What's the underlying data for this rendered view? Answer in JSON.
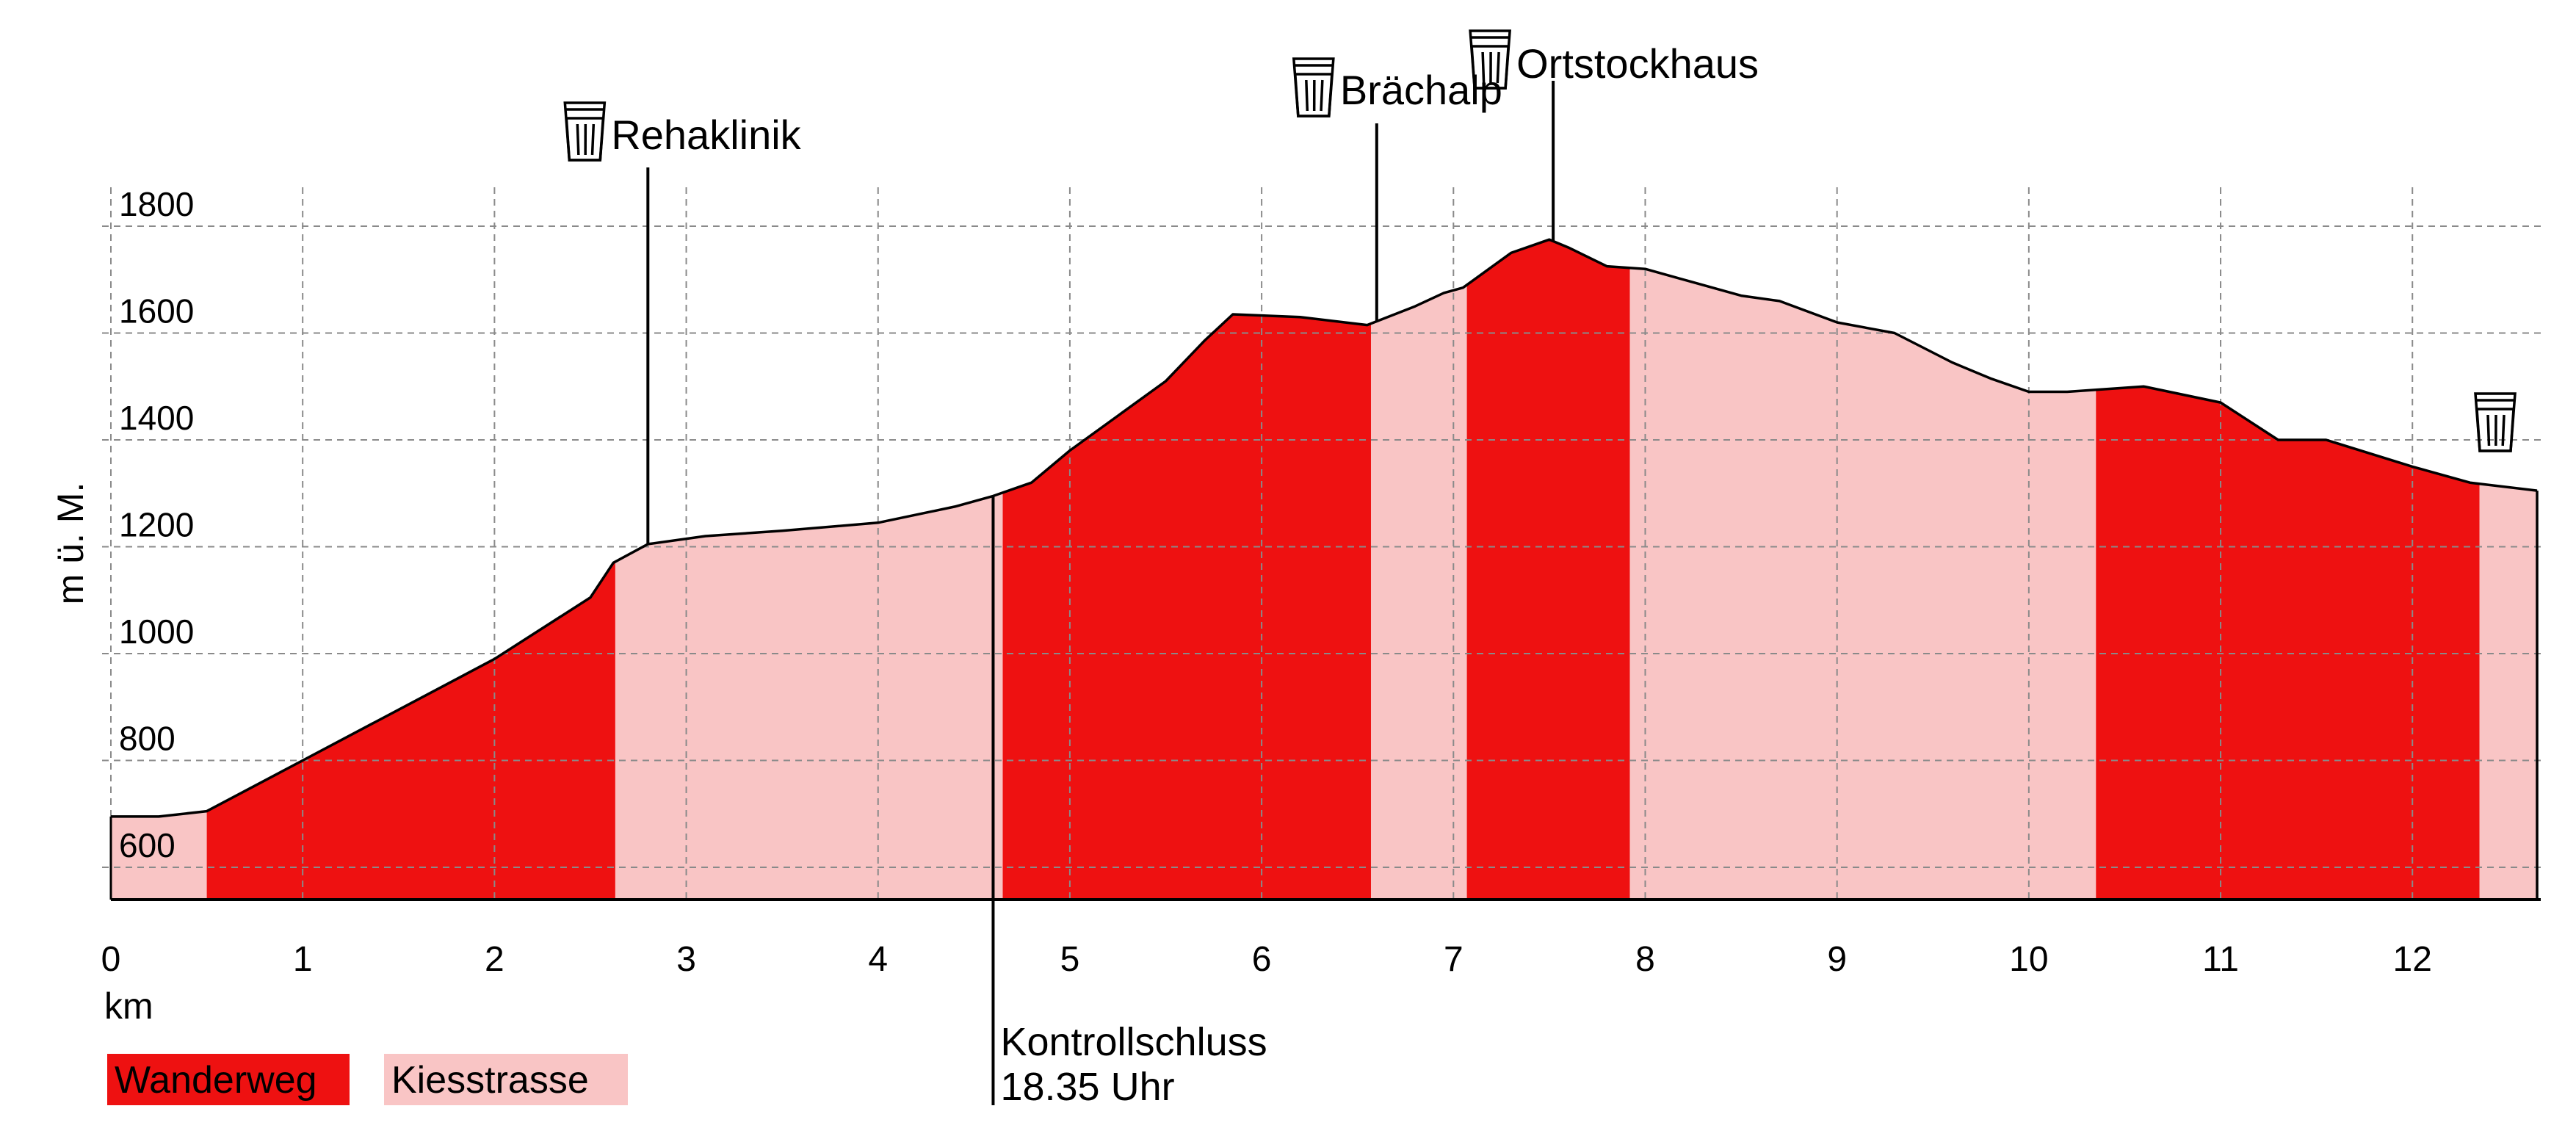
{
  "chart_data": {
    "type": "area",
    "title": "",
    "xlabel": "km",
    "ylabel": "m ü. M.",
    "xlim": [
      0,
      12.65
    ],
    "ylim": [
      550,
      1800
    ],
    "x_ticks": [
      0,
      1,
      2,
      3,
      4,
      5,
      6,
      7,
      8,
      9,
      10,
      11,
      12
    ],
    "y_ticks": [
      600,
      800,
      1000,
      1200,
      1400,
      1600,
      1800
    ],
    "grid": true,
    "profile": {
      "x": [
        0,
        0.25,
        0.5,
        1,
        1.5,
        2,
        2.5,
        2.62,
        2.8,
        3.1,
        3.5,
        4,
        4.4,
        4.6,
        4.8,
        5,
        5.5,
        5.7,
        5.85,
        6.2,
        6.55,
        6.8,
        6.95,
        7.05,
        7.3,
        7.5,
        7.6,
        7.8,
        8.0,
        8.5,
        8.7,
        9,
        9.3,
        9.6,
        9.8,
        10.0,
        10.2,
        10.6,
        11.0,
        11.3,
        11.55,
        12,
        12.3,
        12.65
      ],
      "y": [
        695,
        695,
        705,
        800,
        895,
        990,
        1105,
        1170,
        1205,
        1220,
        1230,
        1245,
        1275,
        1295,
        1320,
        1380,
        1510,
        1585,
        1635,
        1630,
        1615,
        1650,
        1675,
        1685,
        1750,
        1775,
        1760,
        1725,
        1720,
        1670,
        1660,
        1620,
        1600,
        1545,
        1515,
        1490,
        1490,
        1500,
        1470,
        1400,
        1400,
        1350,
        1320,
        1305
      ]
    },
    "segments": [
      {
        "name": "Kiesstrasse",
        "from": 0,
        "to": 0.5
      },
      {
        "name": "Wanderweg",
        "from": 0.5,
        "to": 2.63
      },
      {
        "name": "Kiesstrasse",
        "from": 2.63,
        "to": 4.65
      },
      {
        "name": "Wanderweg",
        "from": 4.65,
        "to": 6.57
      },
      {
        "name": "Kiesstrasse",
        "from": 6.57,
        "to": 7.07
      },
      {
        "name": "Wanderweg",
        "from": 7.07,
        "to": 7.92
      },
      {
        "name": "Kiesstrasse",
        "from": 7.92,
        "to": 10.35
      },
      {
        "name": "Wanderweg",
        "from": 10.35,
        "to": 12.35
      },
      {
        "name": "Kiesstrasse",
        "from": 12.35,
        "to": 12.65
      }
    ],
    "legend": [
      {
        "name": "Wanderweg",
        "color": "#EE1111"
      },
      {
        "name": "Kiesstrasse",
        "color": "#F9C5C5"
      }
    ],
    "legend_position": "bottom-left",
    "annotations": [
      {
        "label": "Rehaklinik",
        "x": 2.8,
        "icon": "cup-icon"
      },
      {
        "label": "Brächalp",
        "x": 6.6,
        "icon": "cup-icon"
      },
      {
        "label": "Ortstockhaus",
        "x": 7.52,
        "icon": "cup-icon"
      },
      {
        "label": "",
        "x": 12.65,
        "icon": "cup-icon"
      }
    ],
    "control_point": {
      "x": 4.6,
      "line1": "Kontrollschluss",
      "line2": "18.35 Uhr"
    }
  }
}
